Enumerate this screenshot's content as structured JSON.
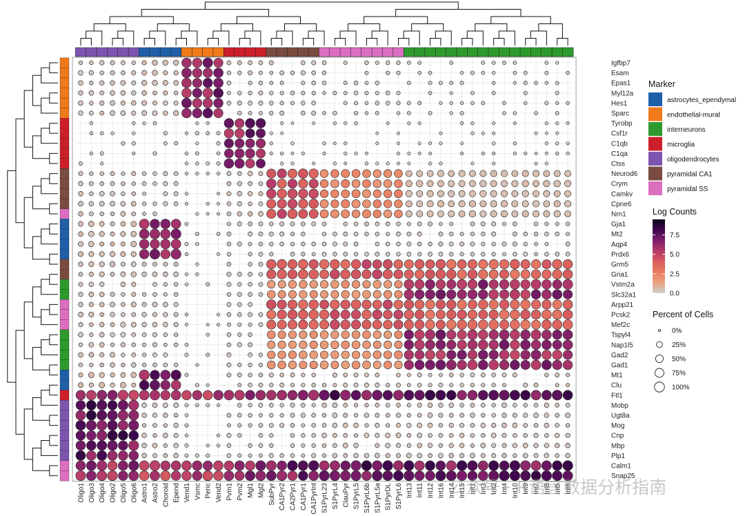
{
  "chart_data": {
    "type": "dotplot",
    "title": "",
    "columns": [
      "Oligo1",
      "Oligo3",
      "Oligo4",
      "Oligo2",
      "Oligo5",
      "Oligo6",
      "Astro1",
      "Astro2",
      "Choroid",
      "Epend",
      "Vend1",
      "Vsmc",
      "Peric",
      "Vend2",
      "Pvm1",
      "Pvm2",
      "Mgl1",
      "Mgl2",
      "SubPyr",
      "CA1Pyr2",
      "CA2Pyr1",
      "CA1Pyr1",
      "CA1PyrInt",
      "S1PyrL23",
      "S1PyrL4",
      "ClauPyr",
      "S1PyrL5",
      "S1PyrL6b",
      "S1PyrL5a",
      "S1PyrDL",
      "S1PyrL6",
      "Int13",
      "Int11",
      "Int12",
      "Int16",
      "Int14",
      "Int15",
      "Int1",
      "Int3",
      "Int2",
      "Int4",
      "Int10",
      "Int9",
      "Int7",
      "Int8",
      "Int5",
      "Int6"
    ],
    "column_groups": [
      "oligodendrocytes",
      "oligodendrocytes",
      "oligodendrocytes",
      "oligodendrocytes",
      "oligodendrocytes",
      "oligodendrocytes",
      "astrocytes_ependymal",
      "astrocytes_ependymal",
      "astrocytes_ependymal",
      "astrocytes_ependymal",
      "endothelial-mural",
      "endothelial-mural",
      "endothelial-mural",
      "endothelial-mural",
      "microglia",
      "microglia",
      "microglia",
      "microglia",
      "pyramidal CA1",
      "pyramidal CA1",
      "pyramidal CA1",
      "pyramidal CA1",
      "pyramidal CA1",
      "pyramidal SS",
      "pyramidal SS",
      "pyramidal SS",
      "pyramidal SS",
      "pyramidal SS",
      "pyramidal SS",
      "pyramidal SS",
      "pyramidal SS",
      "interneurons",
      "interneurons",
      "interneurons",
      "interneurons",
      "interneurons",
      "interneurons",
      "interneurons",
      "interneurons",
      "interneurons",
      "interneurons",
      "interneurons",
      "interneurons",
      "interneurons",
      "interneurons",
      "interneurons",
      "interneurons"
    ],
    "genes": [
      "Igfbp7",
      "Esam",
      "Epas1",
      "Myl12a",
      "Hes1",
      "Sparc",
      "Tyrobp",
      "Csf1r",
      "C1qb",
      "C1qa",
      "Ctss",
      "Neurod6",
      "Crym",
      "Camkv",
      "Cpne6",
      "Nrn1",
      "Gja1",
      "Mt2",
      "Aqp4",
      "Prdx6",
      "Grm5",
      "Gria1",
      "Vstm2a",
      "Slc32a1",
      "Arpp21",
      "Pcsk2",
      "Mef2c",
      "Tspyl4",
      "Nap1l5",
      "Gad2",
      "Gad1",
      "Mt1",
      "Clu",
      "Ftl1",
      "Mobp",
      "Ugt8a",
      "Mog",
      "Cnp",
      "Mbp",
      "Plp1",
      "Calm1",
      "Snap25"
    ],
    "gene_groups": [
      "endothelial-mural",
      "endothelial-mural",
      "endothelial-mural",
      "endothelial-mural",
      "endothelial-mural",
      "endothelial-mural",
      "microglia",
      "microglia",
      "microglia",
      "microglia",
      "microglia",
      "pyramidal CA1",
      "pyramidal CA1",
      "pyramidal CA1",
      "pyramidal CA1",
      "pyramidal SS",
      "astrocytes_ependymal",
      "astrocytes_ependymal",
      "astrocytes_ependymal",
      "astrocytes_ependymal",
      "pyramidal CA1",
      "pyramidal CA1",
      "interneurons",
      "interneurons",
      "pyramidal SS",
      "pyramidal SS",
      "pyramidal SS",
      "interneurons",
      "interneurons",
      "interneurons",
      "interneurons",
      "astrocytes_ependymal",
      "astrocytes_ependymal",
      "microglia",
      "oligodendrocytes",
      "oligodendrocytes",
      "oligodendrocytes",
      "oligodendrocytes",
      "oligodendrocytes",
      "oligodendrocytes",
      "pyramidal SS",
      "pyramidal SS"
    ],
    "profiles": {
      "endo": {
        "base": [
          0.3,
          0.2,
          0.4,
          0.5,
          0.2,
          0.5,
          0.2,
          0.2,
          0.2,
          0.2,
          0.15,
          0.2,
          0.1,
          0.1
        ],
        "hi": {
          "endothelial-mural": [
            6.5,
            90
          ]
        }
      },
      "micro": {
        "base": [
          0.1,
          0.1,
          0.1,
          0.1,
          0.1,
          0.1,
          0.1,
          0.1,
          0.05,
          0.05,
          0.05,
          0.05,
          0.05,
          0.05
        ],
        "hi": {
          "microglia": [
            6.5,
            85
          ]
        }
      },
      "ca1": {
        "base": [
          0.3,
          0.2,
          0.2,
          0.3,
          0.05,
          0.2,
          0.3,
          0.3,
          0.3,
          0.3,
          0.5,
          0.3,
          0.3,
          0.4
        ],
        "hi": {
          "pyramidal CA1": [
            4.5,
            85
          ],
          "pyramidal SS": [
            2.2,
            60
          ],
          "interneurons": [
            0.5,
            30
          ]
        }
      },
      "astro": {
        "base": [
          0.5,
          0.3,
          0.3,
          0.5,
          0.1,
          0.2,
          0.2,
          0.2,
          0.2,
          0.2,
          0.2,
          0.2,
          0.2,
          0.3
        ],
        "hi": {
          "astrocytes_ependymal": [
            6.8,
            95
          ]
        }
      },
      "neuronal": {
        "base": [
          0.4,
          0.3,
          0.3,
          0.5,
          0.05,
          0.2,
          0.2,
          0.2,
          0.2,
          0.2,
          0.3,
          0.3,
          0.3,
          0.4
        ],
        "hi": {
          "pyramidal CA1": [
            3.8,
            85
          ],
          "pyramidal SS": [
            4.2,
            85
          ],
          "interneurons": [
            3.6,
            85
          ]
        }
      },
      "inter": {
        "base": [
          0.3,
          0.2,
          0.2,
          0.3,
          0.1,
          0.2,
          0.2,
          0.2,
          0.2,
          0.2,
          0.2,
          0.2,
          0.2,
          0.3
        ],
        "hi": {
          "interneurons": [
            6.0,
            90
          ],
          "pyramidal SS": [
            1.8,
            55
          ],
          "pyramidal CA1": [
            1.8,
            55
          ]
        }
      },
      "oligo": {
        "base": [
          0.6,
          0.3,
          0.3,
          0.5,
          0.1,
          0.2,
          0.2,
          0.2,
          0.2,
          0.2,
          0.3,
          0.3,
          0.3,
          0.3
        ],
        "hi": {
          "oligodendrocytes": [
            7.2,
            95
          ]
        }
      },
      "house": {
        "base": [
          3.5,
          2.5,
          2.5,
          3.5,
          3.0,
          2.5,
          4.0,
          3.0,
          3.0,
          3.0,
          5.5,
          5.8,
          5.8,
          6.0
        ],
        "hi": {
          "oligodendrocytes": [
            6.0,
            95
          ],
          "astrocytes_ependymal": [
            5.0,
            95
          ],
          "endothelial-mural": [
            5.5,
            95
          ],
          "microglia": [
            6.0,
            95
          ],
          "pyramidal CA1": [
            7.0,
            97
          ],
          "pyramidal SS": [
            7.2,
            97
          ],
          "interneurons": [
            7.0,
            97
          ]
        }
      }
    },
    "gene_profiles": [
      "endo",
      "endo",
      "endo",
      "endo",
      "endo",
      "endo",
      "micro",
      "micro",
      "micro",
      "micro",
      "micro",
      "ca1",
      "ca1",
      "ca1",
      "ca1",
      "ca1",
      "astro",
      "astro",
      "astro",
      "astro",
      "neuronal",
      "neuronal",
      "inter",
      "inter",
      "neuronal",
      "neuronal",
      "neuronal",
      "inter",
      "inter",
      "inter",
      "inter",
      "astro",
      "astro",
      "house",
      "oligo",
      "oligo",
      "oligo",
      "oligo",
      "oligo",
      "oligo",
      "house",
      "house"
    ],
    "legend_marker_title": "Marker",
    "legend_marker": [
      {
        "label": "astrocytes_ependymal",
        "color": "#1f5fa8"
      },
      {
        "label": "endothelial-mural",
        "color": "#f07a1a"
      },
      {
        "label": "interneurons",
        "color": "#2e9a2e"
      },
      {
        "label": "microglia",
        "color": "#cc1f2a"
      },
      {
        "label": "oligodendrocytes",
        "color": "#7d55b0"
      },
      {
        "label": "pyramidal CA1",
        "color": "#7a4b3f"
      },
      {
        "label": "pyramidal SS",
        "color": "#dc6ec0"
      }
    ],
    "legend_color_title": "Log Counts",
    "color_range": [
      0,
      9.5
    ],
    "color_ticks": [
      "7.5",
      "5.0",
      "2.5",
      "0.0"
    ],
    "color_tick_values": [
      7.5,
      5.0,
      2.5,
      0.0
    ],
    "legend_size_title": "Percent of Cells",
    "size_ticks": [
      "0%",
      "25%",
      "50%",
      "75%",
      "100%"
    ],
    "size_tick_values": [
      0,
      25,
      50,
      75,
      100
    ]
  },
  "watermark": "公众号 · R语言数据分析指南",
  "colors": {
    "colormap": [
      "#cfcfcf",
      "#e9a37e",
      "#ea7e63",
      "#d95c5f",
      "#b53a6a",
      "#7d1d6a",
      "#40074f",
      "#0b0418"
    ]
  }
}
